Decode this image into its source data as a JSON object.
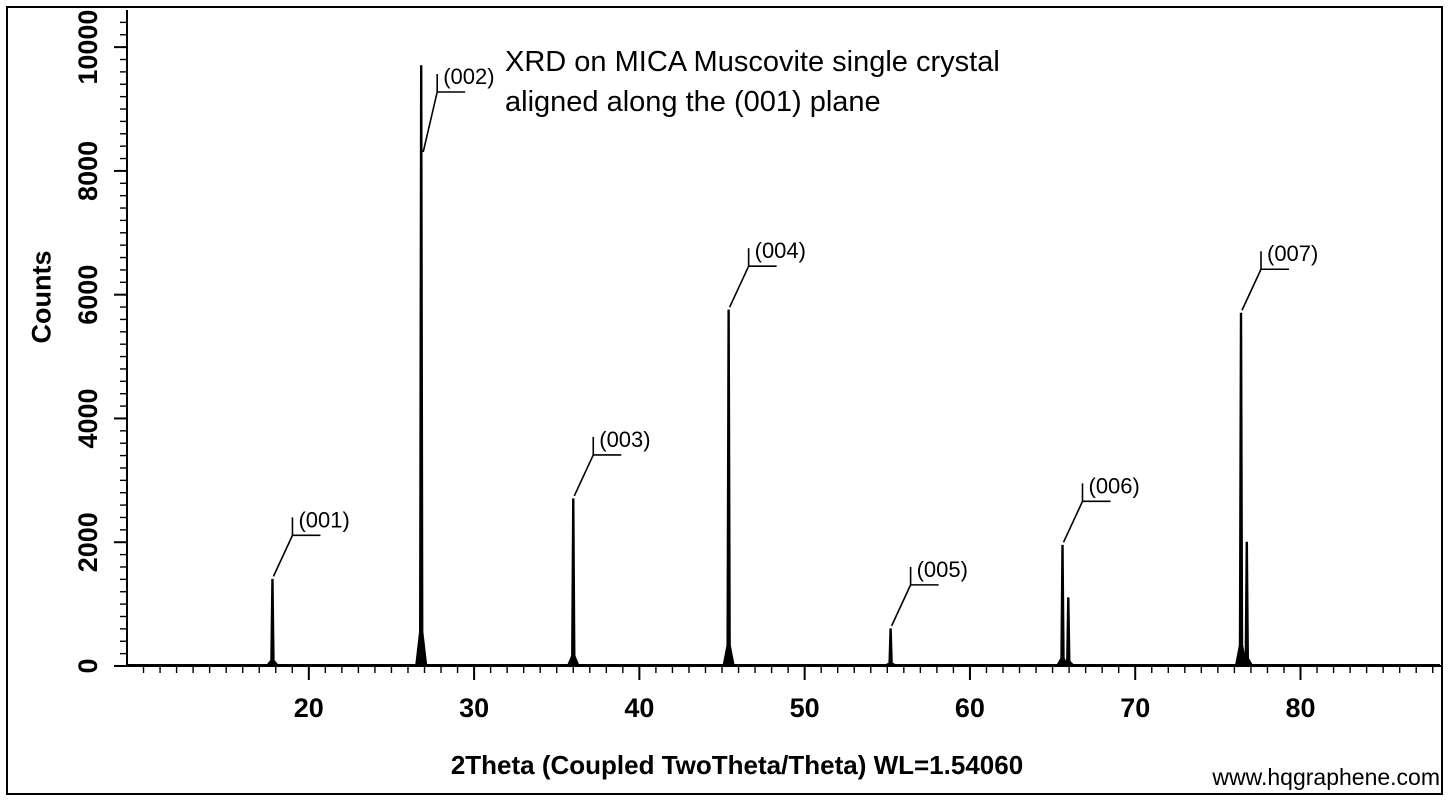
{
  "page": {
    "watermark": "www.hqgraphene.com"
  },
  "chart_data": {
    "type": "line",
    "title_lines": [
      "XRD on MICA Muscovite single crystal",
      "aligned along the (001) plane"
    ],
    "xlabel": "2Theta (Coupled TwoTheta/Theta) WL=1.54060",
    "ylabel": "Counts",
    "xlim": [
      9,
      88.5
    ],
    "ylim": [
      0,
      10600
    ],
    "x_major_ticks": [
      20,
      30,
      40,
      50,
      60,
      70,
      80
    ],
    "x_minor_step": 1,
    "y_major_ticks": [
      0,
      2000,
      4000,
      6000,
      8000,
      10000
    ],
    "y_minor_step": 200,
    "grid": false,
    "background": "#ffffff",
    "line_color": "#000000",
    "peaks": [
      {
        "label": "(001)",
        "two_theta": 17.8,
        "counts": 1400
      },
      {
        "label": "(002)",
        "two_theta": 26.8,
        "counts": 9700
      },
      {
        "label": "(003)",
        "two_theta": 36.0,
        "counts": 2700
      },
      {
        "label": "(004)",
        "two_theta": 45.4,
        "counts": 5750
      },
      {
        "label": "(005)",
        "two_theta": 55.2,
        "counts": 600
      },
      {
        "label": "(006)",
        "two_theta": 65.6,
        "counts": 1950
      },
      {
        "label": "(007)",
        "two_theta": 76.4,
        "counts": 5700
      }
    ],
    "minor_peaks": [
      {
        "two_theta": 65.95,
        "counts": 1100
      },
      {
        "two_theta": 76.75,
        "counts": 2000
      }
    ]
  }
}
